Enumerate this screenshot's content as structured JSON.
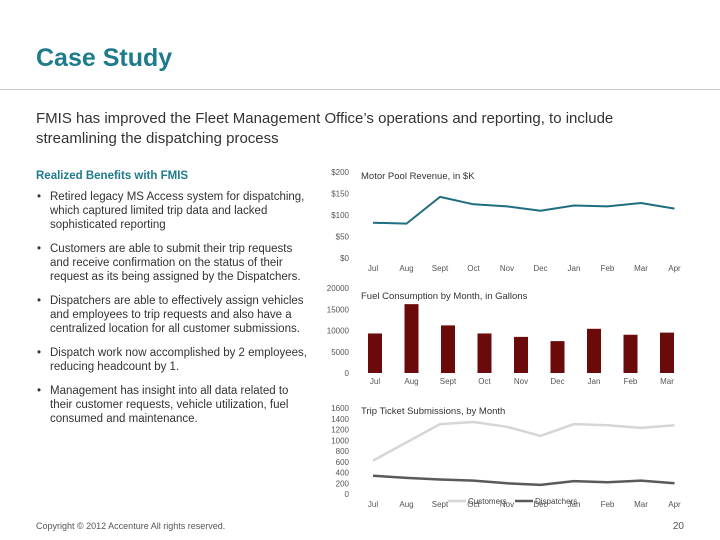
{
  "title": "Case Study",
  "intro": "FMIS has improved the Fleet Management Office’s operations and reporting, to include streamlining the dispatching process",
  "benefits_heading": "Realized Benefits with FMIS",
  "bullets": [
    "Retired legacy MS Access system for dispatching, which captured limited trip data and lacked sophisticated reporting",
    "Customers are able to submit their trip requests and receive confirmation on the status of their request as its being assigned by the Dispatchers.",
    "Dispatchers are able to effectively assign vehicles and employees to trip requests and also have a centralized location for all customer submissions.",
    "Dispatch work now accomplished by 2 employees, reducing headcount by 1.",
    "Management has insight into all data related to their customer requests, vehicle utilization, fuel consumed and maintenance."
  ],
  "footer": "Copyright © 2012 Accenture All rights reserved.",
  "page_number": "20",
  "colors": {
    "title": "#1e7b8c",
    "line": "#1e6e80",
    "bar": "#6b0a0a",
    "customers": "#d6d6d6",
    "dispatchers": "#5a5a5a"
  },
  "chart_data": [
    {
      "type": "line",
      "title": "Motor Pool Revenue, in $K",
      "categories": [
        "Jul",
        "Aug",
        "Sept",
        "Oct",
        "Nov",
        "Dec",
        "Jan",
        "Feb",
        "Mar",
        "Apr"
      ],
      "yticks": [
        "$200",
        "$150",
        "$100",
        "$50",
        "$0"
      ],
      "ylim": [
        0,
        200
      ],
      "series": [
        {
          "values": [
            82,
            80,
            142,
            125,
            120,
            110,
            122,
            120,
            128,
            115
          ]
        }
      ]
    },
    {
      "type": "bar",
      "title": "Fuel Consumption by Month, in Gallons",
      "categories": [
        "Jul",
        "Aug",
        "Sept",
        "Oct",
        "Nov",
        "Dec",
        "Jan",
        "Feb",
        "Mar"
      ],
      "yticks": [
        "20000",
        "15000",
        "10000",
        "5000",
        "0"
      ],
      "ylim": [
        0,
        20000
      ],
      "values": [
        9300,
        16200,
        11200,
        9300,
        8500,
        7500,
        10400,
        9000,
        9500
      ]
    },
    {
      "type": "line",
      "title": "Trip Ticket Submissions, by Month",
      "categories": [
        "Jul",
        "Aug",
        "Sept",
        "Oct",
        "Nov",
        "Dec",
        "Jan",
        "Feb",
        "Mar",
        "Apr"
      ],
      "yticks": [
        "1600",
        "1400",
        "1200",
        "1000",
        "800",
        "600",
        "400",
        "200",
        "0"
      ],
      "ylim": [
        0,
        1600
      ],
      "legend_position": "bottom",
      "series": [
        {
          "name": "Customers",
          "values": [
            620,
            960,
            1300,
            1340,
            1250,
            1080,
            1300,
            1280,
            1230,
            1280
          ]
        },
        {
          "name": "Dispatchers",
          "values": [
            340,
            300,
            270,
            250,
            200,
            170,
            240,
            220,
            250,
            200
          ]
        }
      ]
    }
  ]
}
